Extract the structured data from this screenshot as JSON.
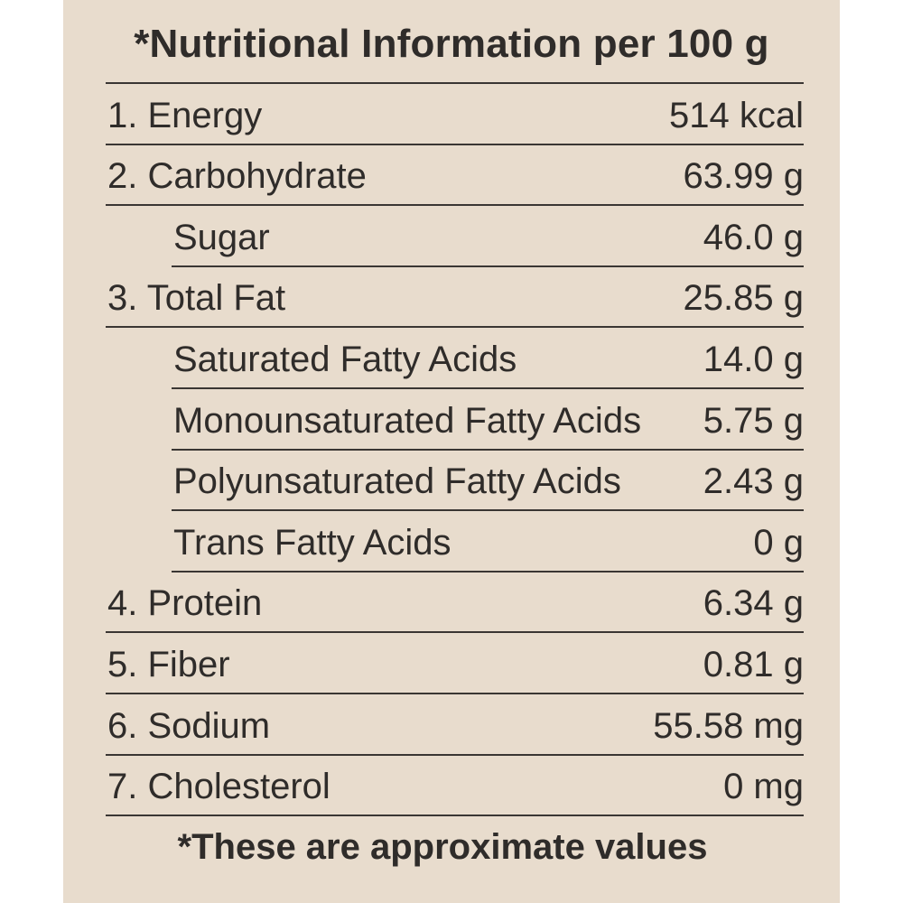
{
  "title": "*Nutritional Information per 100 g",
  "items": [
    {
      "label": "1. Energy",
      "value": "514 kcal"
    },
    {
      "label": "2. Carbohydrate",
      "value": "63.99 g",
      "sub_items": [
        {
          "label": "Sugar",
          "value": "46.0 g"
        }
      ]
    },
    {
      "label": "3. Total Fat",
      "value": "25.85 g",
      "sub_items": [
        {
          "label": "Saturated Fatty Acids",
          "value": "14.0 g"
        },
        {
          "label": "Monounsaturated Fatty Acids",
          "value": "5.75 g"
        },
        {
          "label": "Polyunsaturated Fatty Acids",
          "value": "2.43 g"
        },
        {
          "label": "Trans Fatty Acids",
          "value": "0 g"
        }
      ]
    },
    {
      "label": "4. Protein",
      "value": "6.34 g"
    },
    {
      "label": "5. Fiber",
      "value": "0.81 g"
    },
    {
      "label": "6. Sodium",
      "value": "55.58 mg"
    },
    {
      "label": "7. Cholesterol",
      "value": "0 mg"
    }
  ],
  "footnote": "*These are approximate values"
}
